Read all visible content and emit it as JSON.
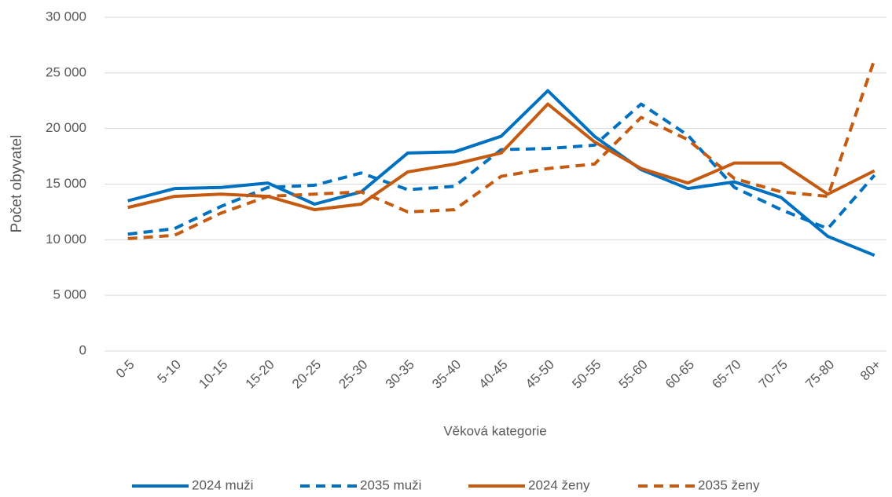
{
  "chart_data": {
    "type": "line",
    "x_label": "Věková kategorie",
    "y_label": "Počet obyvatel",
    "categories": [
      "0-5",
      "5-10",
      "10-15",
      "15-20",
      "20-25",
      "25-30",
      "30-35",
      "35-40",
      "40-45",
      "45-50",
      "50-55",
      "55-60",
      "60-65",
      "65-70",
      "70-75",
      "75-80",
      "80+"
    ],
    "series": [
      {
        "name": "2024 muži",
        "color": "#0070c0",
        "dashed": false,
        "values": [
          13500,
          14600,
          14700,
          15100,
          13200,
          14300,
          17800,
          17900,
          19300,
          23400,
          19300,
          16300,
          14600,
          15200,
          13800,
          10300,
          8600
        ]
      },
      {
        "name": "2035 muži",
        "color": "#0070c0",
        "dashed": true,
        "values": [
          10500,
          11000,
          13000,
          14700,
          14900,
          16000,
          14500,
          14800,
          18100,
          18200,
          18500,
          22200,
          19400,
          14700,
          12700,
          11000,
          15800
        ]
      },
      {
        "name": "2024 ženy",
        "color": "#c55a11",
        "dashed": false,
        "values": [
          12900,
          13900,
          14100,
          13900,
          12700,
          13200,
          16100,
          16800,
          17800,
          22200,
          18800,
          16400,
          15100,
          16900,
          16900,
          14100,
          16200
        ]
      },
      {
        "name": "2035 ženy",
        "color": "#c55a11",
        "dashed": true,
        "values": [
          10100,
          10400,
          12400,
          13900,
          14100,
          14300,
          12500,
          12700,
          15700,
          16400,
          16800,
          21000,
          19000,
          15500,
          14300,
          13900,
          26200
        ]
      }
    ],
    "ylim": [
      0,
      30000
    ],
    "yticks": [
      0,
      {
        "value": 5000,
        "label": "5 000"
      },
      {
        "value": 10000,
        "label": "10 000"
      },
      {
        "value": 15000,
        "label": "15 000"
      },
      {
        "value": 20000,
        "label": "20 000"
      },
      {
        "value": 25000,
        "label": "25 000"
      },
      {
        "value": 30000,
        "label": "30 000"
      }
    ],
    "grid": true,
    "legend": "bottom"
  }
}
